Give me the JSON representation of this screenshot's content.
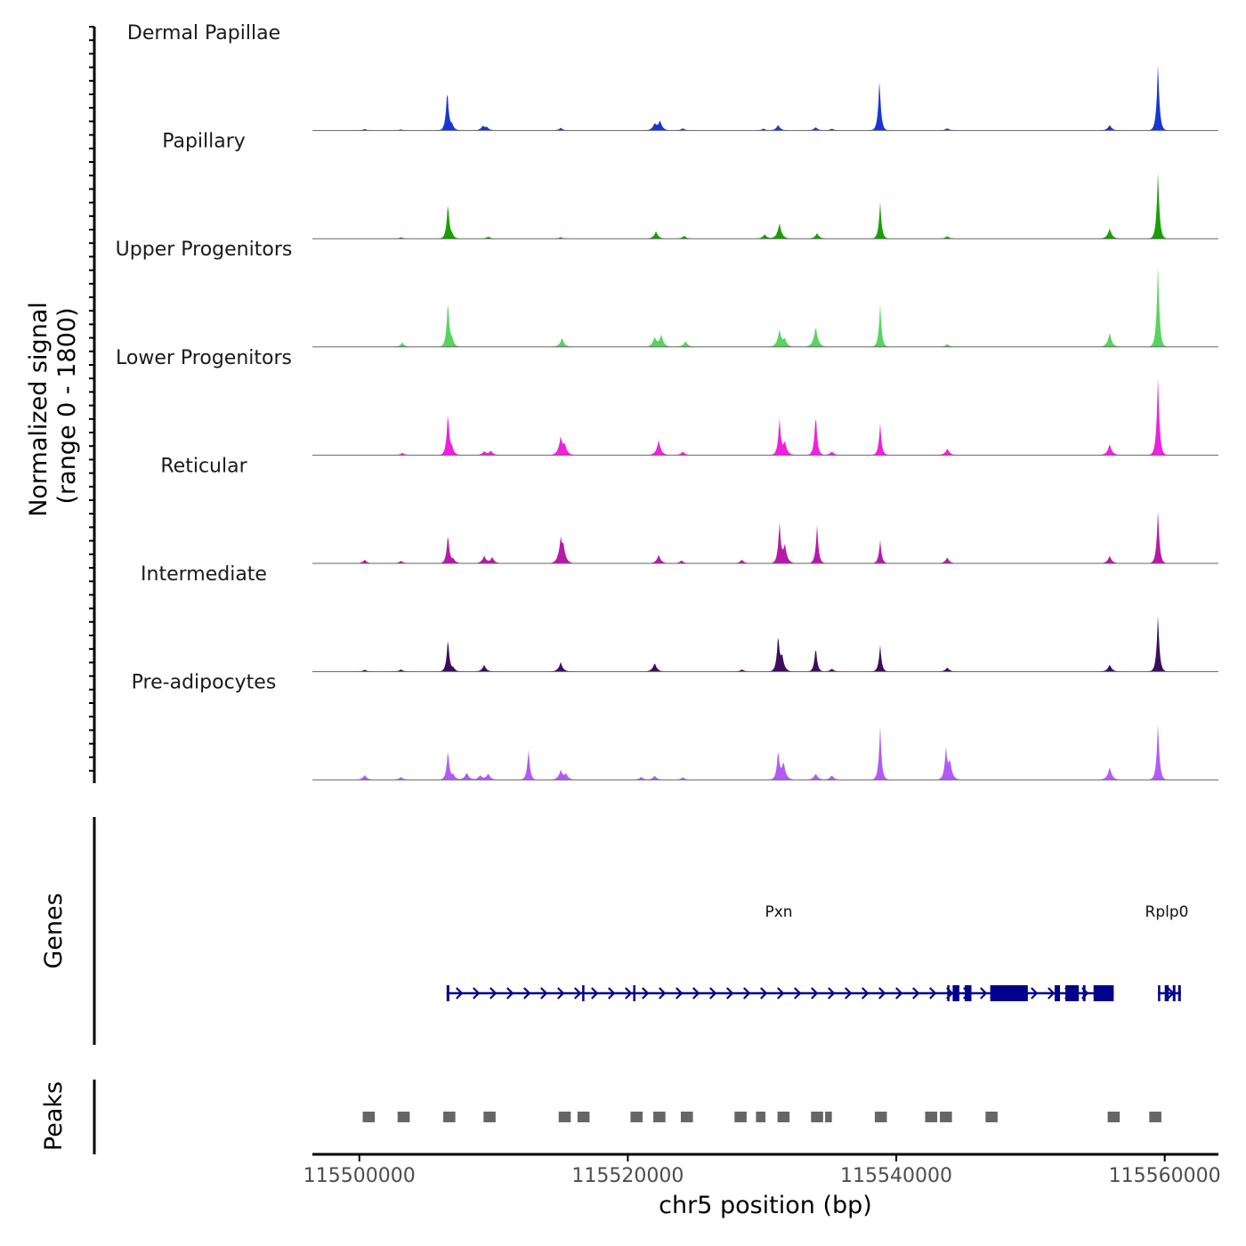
{
  "chart_data": {
    "type": "area",
    "chromosome": "chr5",
    "xlabel": "chr5 position (bp)",
    "xlim": [
      115496500,
      115564000
    ],
    "x_ticks": [
      115500000,
      115520000,
      115540000,
      115560000
    ],
    "x_tick_labels": [
      "115500000",
      "115520000",
      "115540000",
      "115560000"
    ],
    "signal_axis_label_line1": "Normalized signal",
    "signal_axis_label_line2": "(range 0 - 1800)",
    "ylim": [
      0,
      1800
    ],
    "genes_label": "Genes",
    "peaks_label": "Peaks",
    "tracks": [
      {
        "name": "Dermal Papillae",
        "color": "#1a35d6",
        "peaks": [
          [
            115500400,
            40
          ],
          [
            115503100,
            30
          ],
          [
            115506550,
            1150
          ],
          [
            115506900,
            150
          ],
          [
            115509200,
            120
          ],
          [
            115509500,
            80
          ],
          [
            115515000,
            70
          ],
          [
            115522000,
            180
          ],
          [
            115522400,
            260
          ],
          [
            115524100,
            60
          ],
          [
            115530100,
            50
          ],
          [
            115531200,
            150
          ],
          [
            115534000,
            90
          ],
          [
            115535200,
            50
          ],
          [
            115538750,
            1400
          ],
          [
            115543800,
            60
          ],
          [
            115555900,
            150
          ],
          [
            115559500,
            1830
          ]
        ]
      },
      {
        "name": "Papillary",
        "color": "#17a000",
        "peaks": [
          [
            115503100,
            40
          ],
          [
            115506600,
            1000
          ],
          [
            115506900,
            100
          ],
          [
            115509600,
            60
          ],
          [
            115515000,
            40
          ],
          [
            115522100,
            200
          ],
          [
            115524200,
            80
          ],
          [
            115530200,
            120
          ],
          [
            115531300,
            420
          ],
          [
            115534100,
            150
          ],
          [
            115538800,
            980
          ],
          [
            115543800,
            70
          ],
          [
            115555900,
            280
          ],
          [
            115559500,
            1840
          ]
        ]
      },
      {
        "name": "Upper Progenitors",
        "color": "#57d45f",
        "peaks": [
          [
            115503200,
            120
          ],
          [
            115506600,
            1280
          ],
          [
            115506900,
            200
          ],
          [
            115515100,
            250
          ],
          [
            115522000,
            260
          ],
          [
            115522500,
            320
          ],
          [
            115524300,
            160
          ],
          [
            115531300,
            450
          ],
          [
            115531700,
            200
          ],
          [
            115534000,
            560
          ],
          [
            115538800,
            1150
          ],
          [
            115543800,
            80
          ],
          [
            115555900,
            380
          ],
          [
            115559500,
            2250
          ]
        ]
      },
      {
        "name": "Lower Progenitors",
        "color": "#f01ee0",
        "peaks": [
          [
            115503200,
            60
          ],
          [
            115506600,
            1180
          ],
          [
            115506900,
            180
          ],
          [
            115509300,
            100
          ],
          [
            115509800,
            120
          ],
          [
            115515000,
            450
          ],
          [
            115515300,
            250
          ],
          [
            115522300,
            400
          ],
          [
            115524100,
            100
          ],
          [
            115531300,
            1000
          ],
          [
            115531700,
            350
          ],
          [
            115534000,
            1180
          ],
          [
            115535200,
            100
          ],
          [
            115538800,
            850
          ],
          [
            115543800,
            180
          ],
          [
            115555900,
            300
          ],
          [
            115559500,
            2150
          ]
        ]
      },
      {
        "name": "Reticular",
        "color": "#b818a8",
        "peaks": [
          [
            115500400,
            100
          ],
          [
            115503100,
            70
          ],
          [
            115506600,
            820
          ],
          [
            115507000,
            120
          ],
          [
            115509300,
            200
          ],
          [
            115509900,
            160
          ],
          [
            115515000,
            580
          ],
          [
            115515200,
            350
          ],
          [
            115522300,
            230
          ],
          [
            115524000,
            80
          ],
          [
            115528500,
            100
          ],
          [
            115531300,
            1100
          ],
          [
            115531700,
            500
          ],
          [
            115534100,
            1030
          ],
          [
            115538800,
            620
          ],
          [
            115543800,
            160
          ],
          [
            115555900,
            200
          ],
          [
            115559500,
            1450
          ]
        ]
      },
      {
        "name": "Intermediate",
        "color": "#3b0d5a",
        "peaks": [
          [
            115500400,
            50
          ],
          [
            115503100,
            60
          ],
          [
            115506600,
            930
          ],
          [
            115507000,
            100
          ],
          [
            115509300,
            180
          ],
          [
            115515000,
            250
          ],
          [
            115522000,
            240
          ],
          [
            115528500,
            60
          ],
          [
            115531200,
            980
          ],
          [
            115531500,
            400
          ],
          [
            115534000,
            700
          ],
          [
            115535200,
            80
          ],
          [
            115538800,
            720
          ],
          [
            115543800,
            110
          ],
          [
            115555900,
            190
          ],
          [
            115559500,
            1560
          ]
        ]
      },
      {
        "name": "Pre-adipocytes",
        "color": "#b25af4",
        "peaks": [
          [
            115500400,
            130
          ],
          [
            115503100,
            80
          ],
          [
            115506600,
            830
          ],
          [
            115507000,
            140
          ],
          [
            115508000,
            200
          ],
          [
            115509000,
            120
          ],
          [
            115509600,
            170
          ],
          [
            115512600,
            850
          ],
          [
            115515000,
            250
          ],
          [
            115515400,
            150
          ],
          [
            115521000,
            80
          ],
          [
            115522000,
            110
          ],
          [
            115524100,
            70
          ],
          [
            115531200,
            800
          ],
          [
            115531600,
            480
          ],
          [
            115534000,
            170
          ],
          [
            115535200,
            120
          ],
          [
            115538800,
            1430
          ],
          [
            115543700,
            820
          ],
          [
            115544000,
            500
          ],
          [
            115555900,
            340
          ],
          [
            115559500,
            1550
          ]
        ]
      }
    ],
    "genes": [
      {
        "name": "Pxn",
        "strand": "+",
        "start": 115506500,
        "end": 115556200,
        "exons": [
          [
            115506500,
            115506700
          ],
          [
            115516600,
            115516700
          ],
          [
            115520400,
            115520500
          ],
          [
            115543800,
            115543850
          ],
          [
            115544200,
            115544700
          ],
          [
            115545100,
            115545600
          ],
          [
            115547000,
            115549800
          ],
          [
            115551800,
            115552200
          ],
          [
            115552600,
            115553600
          ],
          [
            115553900,
            115554100
          ],
          [
            115554700,
            115556200
          ]
        ]
      },
      {
        "name": "Rplp0",
        "strand": "+",
        "start": 115559500,
        "end": 115561200,
        "exons": [
          [
            115559500,
            115559650
          ],
          [
            115560000,
            115560300
          ],
          [
            115560600,
            115560800
          ],
          [
            115561000,
            115561200
          ]
        ]
      }
    ],
    "peak_regions": [
      [
        115500250,
        115501150
      ],
      [
        115502850,
        115503750
      ],
      [
        115506250,
        115507150
      ],
      [
        115509250,
        115510150
      ],
      [
        115514850,
        115515750
      ],
      [
        115516250,
        115517150
      ],
      [
        115520200,
        115521100
      ],
      [
        115521900,
        115522800
      ],
      [
        115523950,
        115524850
      ],
      [
        115527950,
        115528850
      ],
      [
        115529550,
        115530250
      ],
      [
        115531150,
        115532050
      ],
      [
        115533650,
        115534550
      ],
      [
        115534700,
        115535200
      ],
      [
        115538400,
        115539300
      ],
      [
        115542150,
        115543050
      ],
      [
        115543250,
        115544150
      ],
      [
        115546650,
        115547550
      ],
      [
        115555750,
        115556650
      ],
      [
        115558850,
        115559750
      ]
    ]
  }
}
